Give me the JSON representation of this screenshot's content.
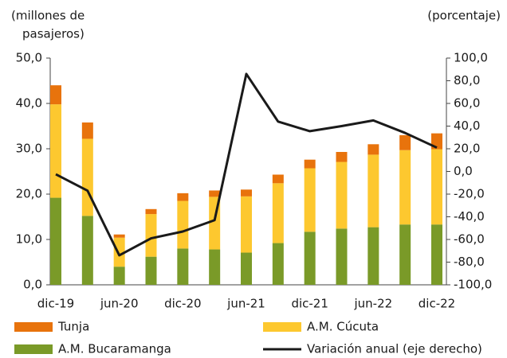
{
  "chart_data": {
    "type": "bar",
    "stacked": true,
    "ylabel": [
      "(millones de",
      "pasajeros)"
    ],
    "y2label": "(porcentaje)",
    "categories": [
      "dic-19",
      null,
      "jun-20",
      null,
      "dic-20",
      null,
      "jun-21",
      null,
      "dic-21",
      null,
      "jun-22",
      null,
      "dic-22"
    ],
    "series": [
      {
        "name": "Tunja",
        "color": "#e8730c",
        "values": [
          4.2,
          3.6,
          0.7,
          1.1,
          1.7,
          1.4,
          1.5,
          1.9,
          1.9,
          2.2,
          2.3,
          3.3,
          3.5
        ]
      },
      {
        "name": "A.M. Cúcuta",
        "color": "#fdc82f",
        "values": [
          20.6,
          17.0,
          6.4,
          9.4,
          10.5,
          11.6,
          12.4,
          13.2,
          14.0,
          14.7,
          16.0,
          16.4,
          16.6
        ]
      },
      {
        "name": "A.M. Bucaramanga",
        "color": "#7a9a28",
        "values": [
          19.2,
          15.2,
          4.0,
          6.2,
          8.0,
          7.8,
          7.1,
          9.2,
          11.7,
          12.4,
          12.7,
          13.3,
          13.3
        ]
      },
      {
        "name": "Variación anual (eje derecho)",
        "color": "#1a1a1a",
        "type": "line",
        "axis": "y2",
        "values": [
          -2.5,
          -17,
          -74,
          -59,
          -53,
          -43,
          86,
          44,
          35.5,
          40,
          45,
          34,
          21
        ]
      }
    ],
    "ylim": [
      0,
      50
    ],
    "yticks": [
      {
        "value": 0,
        "label": "0,0"
      },
      {
        "value": 10,
        "label": "10,0"
      },
      {
        "value": 20,
        "label": "20,0"
      },
      {
        "value": 30,
        "label": "30,0"
      },
      {
        "value": 40,
        "label": "40,0"
      },
      {
        "value": 50,
        "label": "50,0"
      }
    ],
    "y2lim": [
      -100,
      100
    ],
    "y2ticks": [
      {
        "value": -100,
        "label": "-100,0"
      },
      {
        "value": -80,
        "label": "-80,0"
      },
      {
        "value": -60,
        "label": "-60,0"
      },
      {
        "value": -40,
        "label": "-40,0"
      },
      {
        "value": -20,
        "label": "-20,0"
      },
      {
        "value": 0,
        "label": "0,0"
      },
      {
        "value": 20,
        "label": "20,0"
      },
      {
        "value": 40,
        "label": "40,0"
      },
      {
        "value": 60,
        "label": "60,0"
      },
      {
        "value": 80,
        "label": "80,0"
      },
      {
        "value": 100,
        "label": "100,0"
      }
    ],
    "grid": false,
    "legend": "bottom"
  }
}
